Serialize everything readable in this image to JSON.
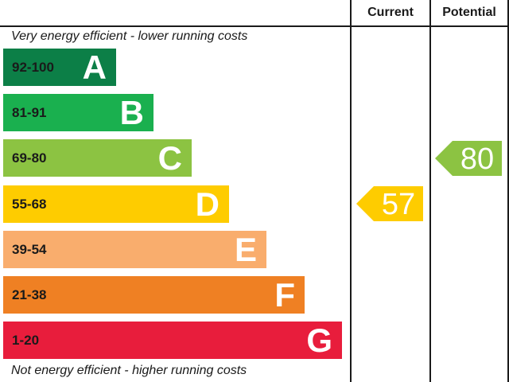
{
  "chart_data": {
    "type": "bar",
    "title": "",
    "columns": {
      "current": "Current",
      "potential": "Potential"
    },
    "top_caption": "Very energy efficient - lower running costs",
    "bottom_caption": "Not energy efficient - higher running costs",
    "bands": [
      {
        "letter": "A",
        "range": "92-100",
        "min": 92,
        "max": 100,
        "color": "#0c7f47"
      },
      {
        "letter": "B",
        "range": "81-91",
        "min": 81,
        "max": 91,
        "color": "#1ab04f"
      },
      {
        "letter": "C",
        "range": "69-80",
        "min": 69,
        "max": 80,
        "color": "#8cc342"
      },
      {
        "letter": "D",
        "range": "55-68",
        "min": 55,
        "max": 68,
        "color": "#fecc00"
      },
      {
        "letter": "E",
        "range": "39-54",
        "min": 39,
        "max": 54,
        "color": "#f9ad6d"
      },
      {
        "letter": "F",
        "range": "21-38",
        "min": 21,
        "max": 38,
        "color": "#ef8023"
      },
      {
        "letter": "G",
        "range": "1-20",
        "min": 1,
        "max": 20,
        "color": "#e81d3c"
      }
    ],
    "ratings": {
      "current": {
        "value": 57,
        "band": "D",
        "color": "#fecc00"
      },
      "potential": {
        "value": 80,
        "band": "C",
        "color": "#8cc342"
      }
    }
  }
}
